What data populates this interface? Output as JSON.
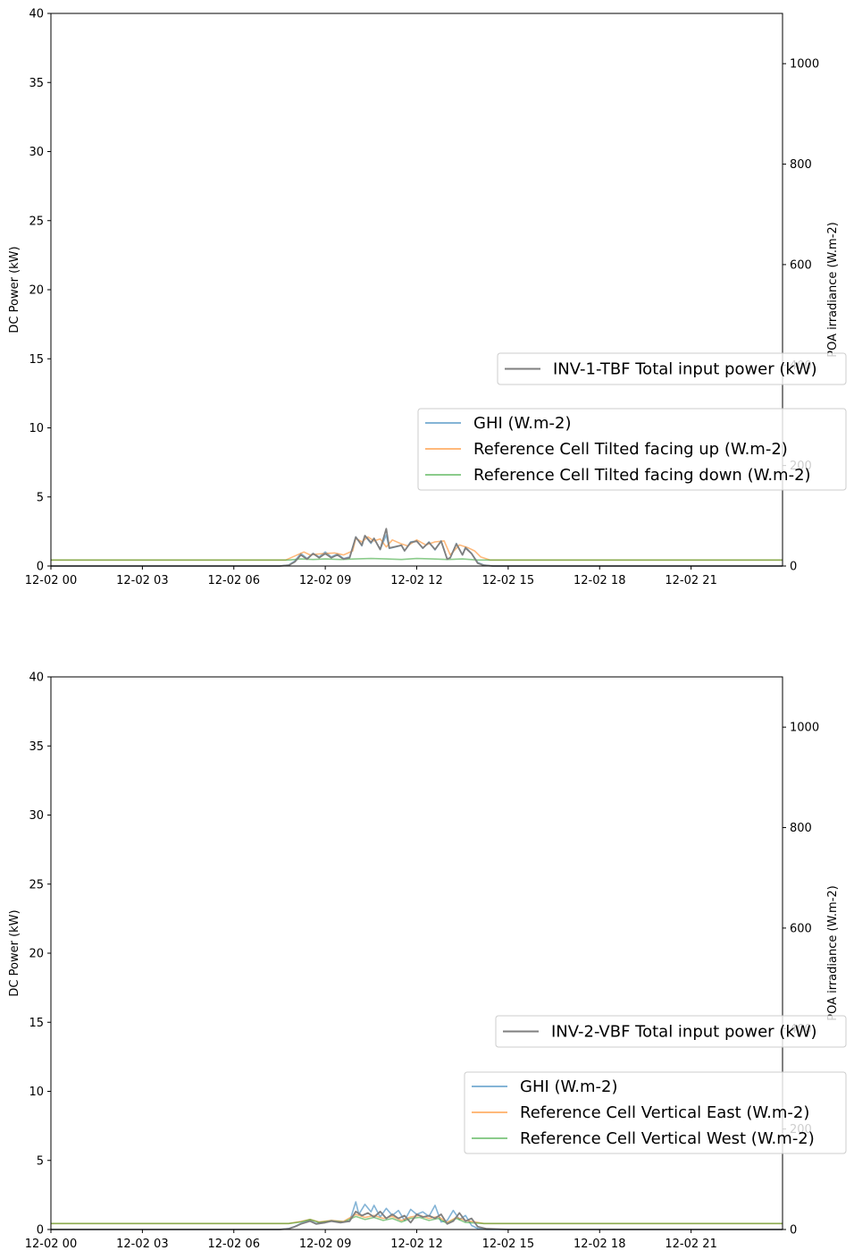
{
  "colors": {
    "power": "#7f7f7f",
    "series1": "#1f77b4",
    "series2": "#ff7f0e",
    "series3": "#2ca02c"
  },
  "chart_data": [
    {
      "type": "line",
      "xlabel": "",
      "ylabel": "DC Power (kW)",
      "y2label": "POA irradiance (W.m-2)",
      "ylim": [
        0,
        40
      ],
      "y2lim": [
        0,
        1100
      ],
      "yticks": [
        0,
        5,
        10,
        15,
        20,
        25,
        30,
        35,
        40
      ],
      "y2ticks": [
        0,
        200,
        400,
        600,
        800,
        1000
      ],
      "xlim_hours": [
        0,
        24
      ],
      "xticks": [
        {
          "h": 0,
          "label": "12-02 00"
        },
        {
          "h": 3,
          "label": "12-02 03"
        },
        {
          "h": 6,
          "label": "12-02 06"
        },
        {
          "h": 9,
          "label": "12-02 09"
        },
        {
          "h": 12,
          "label": "12-02 12"
        },
        {
          "h": 15,
          "label": "12-02 15"
        },
        {
          "h": 18,
          "label": "12-02 18"
        },
        {
          "h": 21,
          "label": "12-02 21"
        }
      ],
      "power_legend": "INV-1-TBF Total input power (kW)",
      "irr_legend": [
        "GHI (W.m-2)",
        "Reference Cell Tilted facing up (W.m-2)",
        "Reference Cell Tilted facing down (W.m-2)"
      ],
      "power": {
        "x": [
          0,
          7,
          7.5,
          7.8,
          8.0,
          8.2,
          8.4,
          8.6,
          8.8,
          9.0,
          9.2,
          9.4,
          9.6,
          9.8,
          10.0,
          10.2,
          10.3,
          10.5,
          10.6,
          10.8,
          11.0,
          11.1,
          11.3,
          11.5,
          11.6,
          11.8,
          12.0,
          12.2,
          12.4,
          12.6,
          12.8,
          13.0,
          13.1,
          13.3,
          13.5,
          13.6,
          13.8,
          14.0,
          14.2,
          14.5,
          15,
          16,
          24
        ],
        "y": [
          0,
          0,
          0,
          0.05,
          0.3,
          0.8,
          0.5,
          0.9,
          0.6,
          0.9,
          0.6,
          0.8,
          0.5,
          0.6,
          2.1,
          1.5,
          2.2,
          1.7,
          2.0,
          1.2,
          2.7,
          1.3,
          1.4,
          1.5,
          1.1,
          1.7,
          1.8,
          1.3,
          1.7,
          1.2,
          1.8,
          0.5,
          0.6,
          1.6,
          0.8,
          1.3,
          0.9,
          0.2,
          0.05,
          0,
          0,
          0,
          0
        ]
      },
      "irradiance": [
        {
          "x": [
            0,
            7,
            7.5,
            7.8,
            8.0,
            8.2,
            8.4,
            8.6,
            8.8,
            9.0,
            9.2,
            9.4,
            9.6,
            9.8,
            10.0,
            10.2,
            10.3,
            10.5,
            10.6,
            10.8,
            11.0,
            11.1,
            11.3,
            11.5,
            11.6,
            11.8,
            12.0,
            12.2,
            12.4,
            12.6,
            12.8,
            13.0,
            13.1,
            13.3,
            13.5,
            13.6,
            13.8,
            14.0,
            14.2,
            14.5,
            15,
            16,
            24
          ],
          "y": [
            0,
            0,
            0,
            2,
            10,
            25,
            15,
            25,
            18,
            28,
            18,
            24,
            15,
            18,
            58,
            40,
            60,
            45,
            55,
            33,
            62,
            35,
            38,
            41,
            30,
            48,
            50,
            35,
            48,
            32,
            50,
            14,
            16,
            45,
            22,
            38,
            25,
            7,
            2,
            0,
            0,
            0,
            0
          ]
        },
        {
          "x": [
            0,
            7.7,
            8.0,
            8.3,
            8.5,
            8.8,
            9.0,
            9.3,
            9.6,
            9.9,
            10.0,
            10.2,
            10.4,
            10.6,
            10.8,
            11.0,
            11.2,
            11.5,
            11.7,
            12.0,
            12.3,
            12.6,
            12.9,
            13.1,
            13.4,
            13.7,
            13.9,
            14.1,
            14.4,
            24
          ],
          "y": [
            12,
            12,
            20,
            28,
            22,
            24,
            25,
            26,
            22,
            30,
            55,
            48,
            58,
            50,
            54,
            38,
            52,
            44,
            40,
            52,
            42,
            48,
            50,
            22,
            42,
            36,
            30,
            18,
            12,
            12
          ]
        },
        {
          "x": [
            0,
            7.8,
            8.2,
            8.6,
            9.0,
            9.5,
            10.0,
            10.5,
            11.0,
            11.5,
            12.0,
            12.5,
            13.0,
            13.5,
            14.0,
            14.5,
            24
          ],
          "y": [
            12,
            12,
            14,
            13,
            14,
            13,
            14,
            15,
            14,
            13,
            15,
            14,
            13,
            14,
            12,
            12,
            12
          ]
        }
      ]
    },
    {
      "type": "line",
      "xlabel": "",
      "ylabel": "DC Power (kW)",
      "y2label": "POA irradiance (W.m-2)",
      "ylim": [
        0,
        40
      ],
      "y2lim": [
        0,
        1100
      ],
      "yticks": [
        0,
        5,
        10,
        15,
        20,
        25,
        30,
        35,
        40
      ],
      "y2ticks": [
        0,
        200,
        400,
        600,
        800,
        1000
      ],
      "xlim_hours": [
        0,
        24
      ],
      "xticks": [
        {
          "h": 0,
          "label": "12-02 00"
        },
        {
          "h": 3,
          "label": "12-02 03"
        },
        {
          "h": 6,
          "label": "12-02 06"
        },
        {
          "h": 9,
          "label": "12-02 09"
        },
        {
          "h": 12,
          "label": "12-02 12"
        },
        {
          "h": 15,
          "label": "12-02 15"
        },
        {
          "h": 18,
          "label": "12-02 18"
        },
        {
          "h": 21,
          "label": "12-02 21"
        }
      ],
      "power_legend": "INV-2-VBF Total input power (kW)",
      "irr_legend": [
        "GHI (W.m-2)",
        "Reference Cell Vertical East (W.m-2)",
        "Reference Cell Vertical West (W.m-2)"
      ],
      "power": {
        "x": [
          0,
          7,
          7.5,
          7.8,
          8.0,
          8.2,
          8.5,
          8.7,
          9.0,
          9.2,
          9.5,
          9.8,
          10.0,
          10.2,
          10.4,
          10.6,
          10.8,
          11.0,
          11.2,
          11.4,
          11.6,
          11.8,
          12.0,
          12.2,
          12.4,
          12.6,
          12.8,
          13.0,
          13.2,
          13.4,
          13.6,
          13.8,
          14.0,
          14.3,
          15,
          24
        ],
        "y": [
          0,
          0,
          0,
          0.05,
          0.2,
          0.4,
          0.6,
          0.4,
          0.5,
          0.6,
          0.5,
          0.6,
          1.3,
          1.0,
          1.2,
          0.9,
          1.3,
          0.8,
          1.1,
          0.8,
          1.0,
          0.5,
          1.1,
          0.9,
          1.0,
          0.8,
          1.1,
          0.4,
          0.6,
          1.2,
          0.6,
          0.8,
          0.2,
          0.05,
          0,
          0
        ]
      },
      "irradiance": [
        {
          "x": [
            0,
            7,
            7.5,
            7.8,
            8.0,
            8.2,
            8.5,
            8.7,
            9.0,
            9.2,
            9.5,
            9.8,
            10.0,
            10.1,
            10.3,
            10.5,
            10.6,
            10.8,
            11.0,
            11.2,
            11.4,
            11.6,
            11.8,
            12.0,
            12.2,
            12.4,
            12.6,
            12.8,
            13.0,
            13.2,
            13.4,
            13.6,
            13.8,
            14.0,
            14.3,
            15,
            24
          ],
          "y": [
            0,
            0,
            0,
            2,
            6,
            12,
            18,
            12,
            15,
            18,
            15,
            16,
            55,
            30,
            50,
            35,
            48,
            25,
            42,
            28,
            38,
            18,
            40,
            30,
            35,
            26,
            48,
            15,
            18,
            38,
            20,
            28,
            8,
            2,
            0,
            0,
            0
          ]
        },
        {
          "x": [
            0,
            7.8,
            8.2,
            8.5,
            8.8,
            9.2,
            9.6,
            10.0,
            10.3,
            10.6,
            10.9,
            11.2,
            11.5,
            11.8,
            12.1,
            12.4,
            12.7,
            13.0,
            13.3,
            13.6,
            13.9,
            14.2,
            24
          ],
          "y": [
            12,
            12,
            16,
            20,
            15,
            18,
            16,
            30,
            24,
            28,
            22,
            26,
            18,
            25,
            28,
            22,
            26,
            14,
            24,
            18,
            15,
            12,
            12
          ]
        },
        {
          "x": [
            0,
            7.8,
            8.2,
            8.5,
            8.8,
            9.2,
            9.6,
            10.0,
            10.3,
            10.6,
            10.9,
            11.2,
            11.5,
            11.8,
            12.1,
            12.4,
            12.7,
            13.0,
            13.3,
            13.6,
            13.9,
            14.2,
            24
          ],
          "y": [
            12,
            12,
            15,
            20,
            14,
            17,
            15,
            26,
            20,
            24,
            18,
            22,
            15,
            22,
            24,
            18,
            22,
            12,
            22,
            14,
            13,
            12,
            12
          ]
        }
      ]
    }
  ]
}
